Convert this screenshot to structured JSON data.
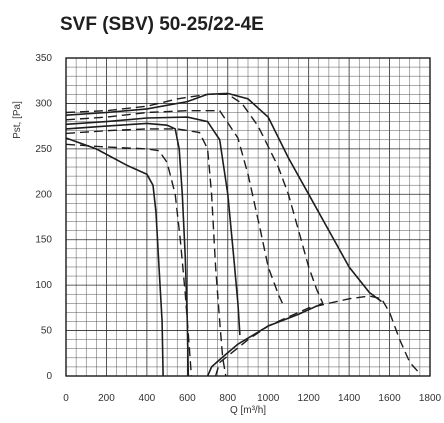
{
  "chart_data": {
    "type": "line",
    "title": "SVF (SBV) 50-25/22-4E",
    "ylabel": "Pst, [Pa]",
    "xlabel": "Q [m³/h]",
    "xlim": [
      0,
      1800
    ],
    "ylim": [
      0,
      350
    ],
    "x_ticks": [
      0,
      200,
      400,
      600,
      800,
      1000,
      1200,
      1400,
      1600,
      1800
    ],
    "y_ticks": [
      0,
      50,
      100,
      150,
      200,
      250,
      300,
      350
    ],
    "grid": true,
    "series": [
      {
        "style": "solid",
        "points": [
          [
            0,
            262
          ],
          [
            150,
            250
          ],
          [
            300,
            232
          ],
          [
            400,
            222
          ],
          [
            430,
            210
          ],
          [
            445,
            180
          ],
          [
            460,
            120
          ],
          [
            475,
            60
          ],
          [
            480,
            0
          ]
        ]
      },
      {
        "style": "dashed",
        "points": [
          [
            0,
            255
          ],
          [
            200,
            252
          ],
          [
            400,
            250
          ],
          [
            460,
            248
          ],
          [
            500,
            235
          ],
          [
            540,
            200
          ],
          [
            565,
            150
          ],
          [
            590,
            90
          ],
          [
            610,
            30
          ],
          [
            620,
            0
          ]
        ]
      },
      {
        "style": "solid",
        "points": [
          [
            0,
            272
          ],
          [
            200,
            275
          ],
          [
            400,
            278
          ],
          [
            500,
            276
          ],
          [
            540,
            272
          ],
          [
            560,
            250
          ],
          [
            575,
            200
          ],
          [
            590,
            130
          ],
          [
            600,
            60
          ],
          [
            605,
            0
          ]
        ]
      },
      {
        "style": "dashed",
        "points": [
          [
            0,
            267
          ],
          [
            200,
            270
          ],
          [
            400,
            272
          ],
          [
            550,
            272
          ],
          [
            660,
            268
          ],
          [
            700,
            250
          ],
          [
            720,
            200
          ],
          [
            740,
            120
          ],
          [
            760,
            60
          ],
          [
            775,
            20
          ],
          [
            790,
            0
          ]
        ]
      },
      {
        "style": "solid",
        "points": [
          [
            0,
            277
          ],
          [
            200,
            280
          ],
          [
            400,
            284
          ],
          [
            600,
            285
          ],
          [
            700,
            280
          ],
          [
            760,
            260
          ],
          [
            800,
            200
          ],
          [
            830,
            130
          ],
          [
            850,
            80
          ],
          [
            860,
            45
          ]
        ]
      },
      {
        "style": "dashed",
        "points": [
          [
            0,
            282
          ],
          [
            200,
            285
          ],
          [
            400,
            290
          ],
          [
            600,
            292
          ],
          [
            760,
            292
          ],
          [
            850,
            262
          ],
          [
            900,
            222
          ],
          [
            960,
            162
          ],
          [
            1000,
            120
          ],
          [
            1050,
            90
          ],
          [
            1070,
            80
          ]
        ]
      },
      {
        "style": "solid",
        "points": [
          [
            0,
            287
          ],
          [
            200,
            290
          ],
          [
            400,
            294
          ],
          [
            600,
            302
          ],
          [
            700,
            310
          ],
          [
            800,
            311
          ],
          [
            900,
            305
          ],
          [
            1000,
            285
          ],
          [
            1100,
            240
          ],
          [
            1200,
            200
          ],
          [
            1300,
            160
          ],
          [
            1400,
            120
          ],
          [
            1500,
            92
          ],
          [
            1560,
            82
          ]
        ]
      },
      {
        "style": "dashed",
        "points": [
          [
            0,
            290
          ],
          [
            200,
            292
          ],
          [
            400,
            297
          ],
          [
            550,
            305
          ],
          [
            700,
            310
          ],
          [
            800,
            310
          ],
          [
            870,
            300
          ],
          [
            950,
            275
          ],
          [
            1050,
            230
          ],
          [
            1100,
            200
          ],
          [
            1150,
            160
          ],
          [
            1200,
            120
          ],
          [
            1240,
            95
          ],
          [
            1270,
            80
          ]
        ]
      },
      {
        "style": "dashed",
        "points": [
          [
            740,
            0
          ],
          [
            760,
            15
          ],
          [
            800,
            22
          ],
          [
            900,
            40
          ],
          [
            1000,
            55
          ],
          [
            1100,
            65
          ],
          [
            1200,
            75
          ],
          [
            1300,
            80
          ],
          [
            1400,
            85
          ],
          [
            1500,
            88
          ],
          [
            1560,
            85
          ],
          [
            1600,
            70
          ],
          [
            1650,
            40
          ],
          [
            1700,
            15
          ],
          [
            1740,
            5
          ]
        ]
      },
      {
        "style": "solid",
        "points": [
          [
            700,
            0
          ],
          [
            720,
            10
          ],
          [
            760,
            18
          ],
          [
            850,
            35
          ],
          [
            1000,
            55
          ],
          [
            1150,
            68
          ],
          [
            1270,
            80
          ]
        ]
      }
    ]
  }
}
